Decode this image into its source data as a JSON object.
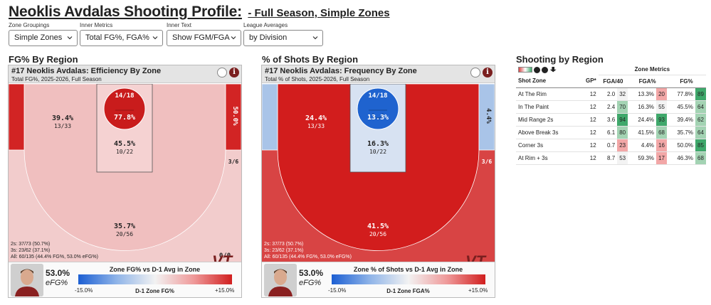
{
  "title": {
    "main": "Neoklis Avdalas Shooting Profile:",
    "sub": "- Full Season, Simple Zones"
  },
  "controls": [
    {
      "label": "Zone Groupings",
      "value": "Simple Zones"
    },
    {
      "label": "Inner Metrics",
      "value": "Total FG%, FGA%"
    },
    {
      "label": "Inner Text",
      "value": "Show FGM/FGA"
    },
    {
      "label": "League Averages",
      "value": "by Division"
    }
  ],
  "sections": {
    "fg": "FG% By Region",
    "freq": "% of Shots By Region",
    "table": "Shooting by Region"
  },
  "panels": {
    "fg": {
      "title": "#17 Neoklis Avdalas: Efficiency By Zone",
      "subtitle": "Total FG%, 2025-2026, Full Season",
      "zones": {
        "rim_count": "14/18",
        "rim_value": "77.8%",
        "paint_value": "45.5%",
        "paint_count": "10/22",
        "mid_value": "39.4%",
        "mid_count": "13/33",
        "corner_value": "50.0%",
        "corner_count": "3/6",
        "three_value": "35.7%",
        "three_count": "20/56",
        "left_corner_count": "0/0"
      },
      "colors": {
        "rim": "#c91c1c",
        "mid": "#f0bfbf",
        "paint": "#f5d2d2",
        "corner": "#d22424",
        "three": "#f2cccc",
        "left_corner": "#d22424"
      },
      "legend": {
        "title": "Zone FG% vs D-1 Avg in Zone",
        "mid": "D-1 Zone FG%"
      },
      "metric": {
        "value": "53.0%",
        "label": "eFG%"
      }
    },
    "freq": {
      "title": "#17 Neoklis Avdalas: Frequency By Zone",
      "subtitle": "Total % of Shots, 2025-2026, Full Season",
      "zones": {
        "rim_count": "14/18",
        "rim_value": "13.3%",
        "paint_value": "16.3%",
        "paint_count": "10/22",
        "mid_value": "24.4%",
        "mid_count": "13/33",
        "corner_value": "4.4%",
        "corner_count": "3/6",
        "three_value": "41.5%",
        "three_count": "20/56"
      },
      "colors": {
        "rim": "#1f63cf",
        "mid": "#d21d1d",
        "paint": "#d7e2f2",
        "corner": "#a9c4e8",
        "three": "#d84444",
        "left_corner": "#a9c4e8"
      },
      "legend": {
        "title": "Zone % of Shots vs D-1 Avg in Zone",
        "mid": "D-1 Zone FGA%"
      },
      "metric": {
        "value": "53.0%",
        "label": "eFG%"
      }
    }
  },
  "summary": {
    "twos": "2s: 37/73 (50.7%)",
    "threes": "3s: 23/62 (37.1%)",
    "all": "All: 60/135 (44.4% FG%, 53.0% eFG%)"
  },
  "legend_range": {
    "min": "-15.0%",
    "max": "+15.0%"
  },
  "logo_text": "VT",
  "table": {
    "group_header": "Zone Metrics",
    "headers": {
      "zone": "Shot Zone",
      "gp": "GP*",
      "fga40": "FGA/40",
      "fgapct": "FGA%",
      "fgpct": "FG%"
    },
    "rows": [
      {
        "zone": "At The Rim",
        "gp": "12",
        "fga40": "2.0",
        "p1": "32",
        "fgapct": "13.3%",
        "p2": "20",
        "fgpct": "77.8%",
        "p3": "89"
      },
      {
        "zone": "In The Paint",
        "gp": "12",
        "fga40": "2.4",
        "p1": "70",
        "fgapct": "16.3%",
        "p2": "55",
        "fgpct": "45.5%",
        "p3": "64"
      },
      {
        "zone": "Mid Range 2s",
        "gp": "12",
        "fga40": "3.6",
        "p1": "94",
        "fgapct": "24.4%",
        "p2": "93",
        "fgpct": "39.4%",
        "p3": "62"
      },
      {
        "zone": "Above Break 3s",
        "gp": "12",
        "fga40": "6.1",
        "p1": "80",
        "fgapct": "41.5%",
        "p2": "68",
        "fgpct": "35.7%",
        "p3": "64"
      },
      {
        "zone": "Corner 3s",
        "gp": "12",
        "fga40": "0.7",
        "p1": "23",
        "fgapct": "4.4%",
        "p2": "16",
        "fgpct": "50.0%",
        "p3": "85"
      },
      {
        "zone": "At Rim + 3s",
        "gp": "12",
        "fga40": "8.7",
        "p1": "53",
        "fgapct": "59.3%",
        "p2": "17",
        "fgpct": "46.3%",
        "p3": "68"
      }
    ],
    "pct_colors": {
      "high": "#3fa86b",
      "mid_high": "#a3d3b3",
      "neutral": "#f3f3f3",
      "low": "#f2a7a7"
    }
  }
}
